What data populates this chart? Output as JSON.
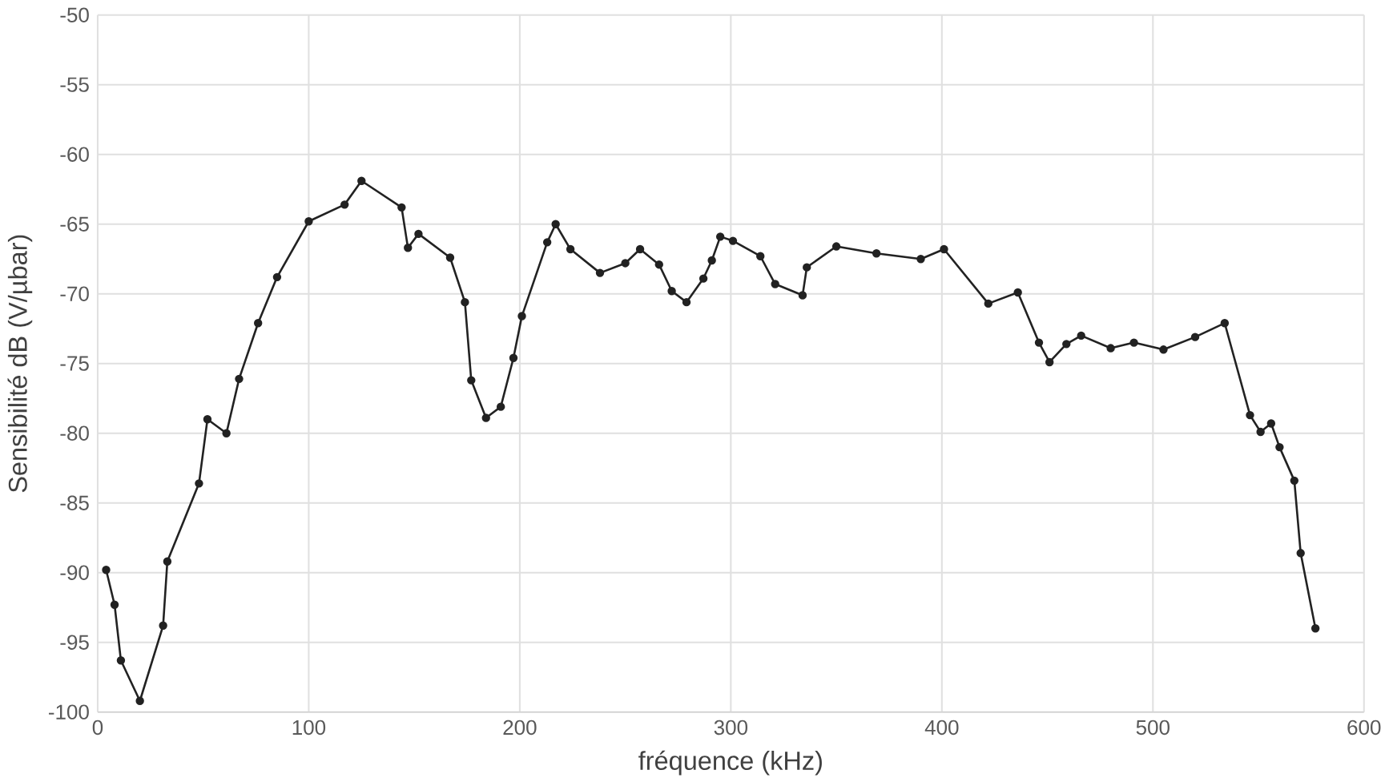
{
  "chart_data": {
    "type": "line",
    "xlabel": "fréquence (kHz)",
    "ylabel": "Sensibilité dB (V/µbar)",
    "xlim": [
      0,
      600
    ],
    "ylim": [
      -100,
      -50
    ],
    "xticks": [
      0,
      100,
      200,
      300,
      400,
      500,
      600
    ],
    "yticks": [
      -100,
      -95,
      -90,
      -85,
      -80,
      -75,
      -70,
      -65,
      -60,
      -55,
      -50
    ],
    "grid": true,
    "marker": "circle",
    "line_style": "solid",
    "series": [
      {
        "color": "#222222",
        "x": [
          4,
          8,
          11,
          20,
          31,
          33,
          48,
          52,
          61,
          67,
          76,
          85,
          100,
          117,
          125,
          144,
          147,
          152,
          167,
          174,
          177,
          184,
          191,
          197,
          201,
          213,
          217,
          224,
          238,
          250,
          257,
          266,
          272,
          279,
          287,
          291,
          295,
          301,
          314,
          321,
          334,
          336,
          350,
          369,
          390,
          401,
          422,
          436,
          446,
          451,
          459,
          466,
          480,
          491,
          505,
          520,
          534,
          546,
          551,
          556,
          560,
          567,
          570,
          577
        ],
        "values": [
          -89.8,
          -92.3,
          -96.3,
          -99.2,
          -93.8,
          -89.2,
          -83.6,
          -79,
          -80,
          -76.1,
          -72.1,
          -68.8,
          -64.8,
          -63.6,
          -61.9,
          -63.8,
          -66.7,
          -65.7,
          -67.4,
          -70.6,
          -76.2,
          -78.9,
          -78.1,
          -74.6,
          -71.6,
          -66.3,
          -65,
          -66.8,
          -68.5,
          -67.8,
          -66.8,
          -67.9,
          -69.8,
          -70.6,
          -68.9,
          -67.6,
          -65.9,
          -66.2,
          -67.3,
          -69.3,
          -70.1,
          -68.1,
          -66.6,
          -67.1,
          -67.5,
          -66.8,
          -70.7,
          -69.9,
          -73.5,
          -74.9,
          -73.6,
          -73,
          -73.9,
          -73.5,
          -74,
          -73.1,
          -72.1,
          -78.7,
          -79.9,
          -79.3,
          -81,
          -83.4,
          -88.6,
          -94
        ]
      }
    ]
  }
}
